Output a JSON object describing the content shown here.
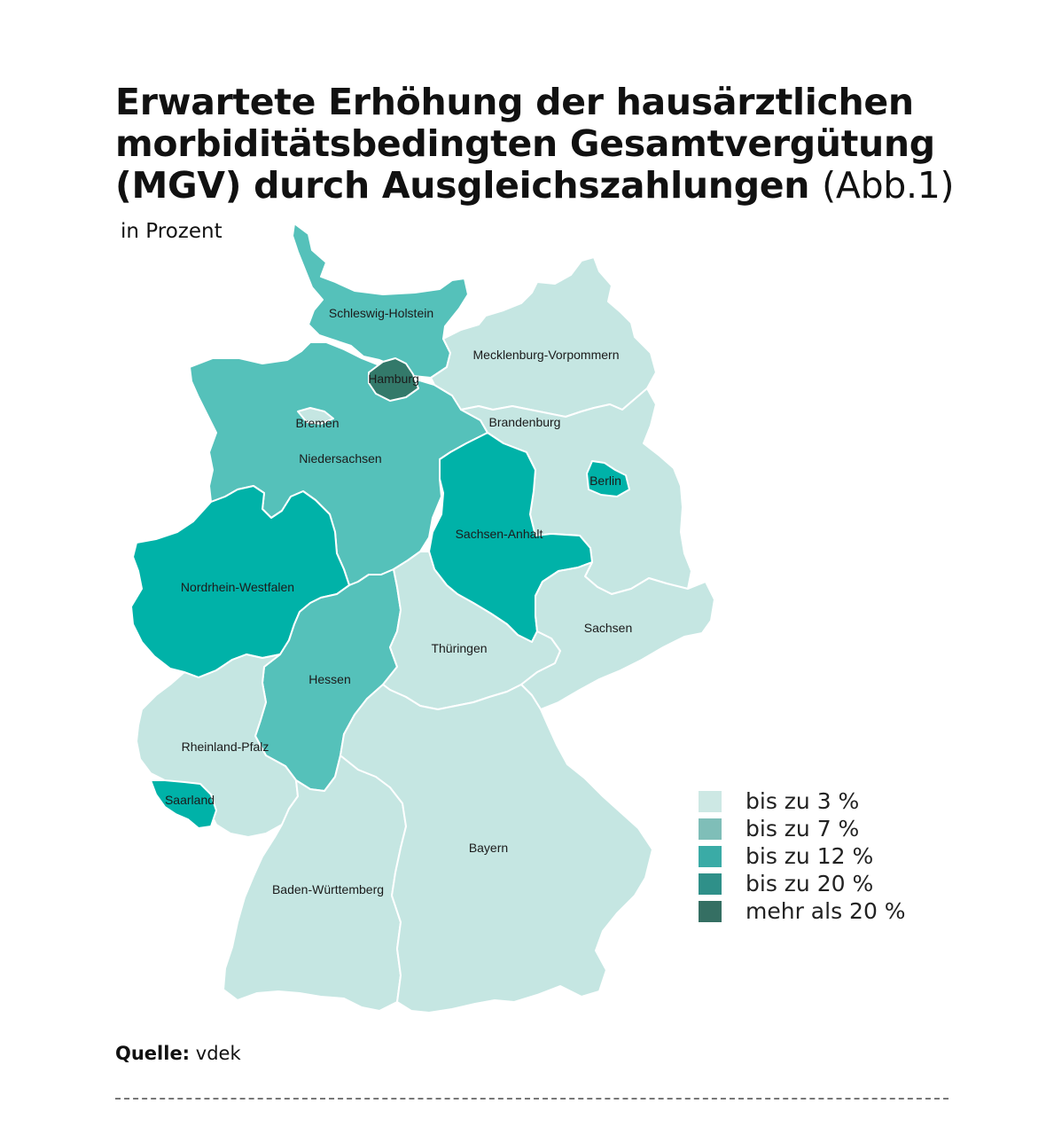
{
  "title": {
    "main": "Erwartete Erhöhung der hausärztlichen morbiditätsbedingten Gesamtvergütung (MGV) durch Ausgleichszahlungen",
    "suffix": "(Abb.1)"
  },
  "subtitle": "in Prozent",
  "colors": {
    "bis_3": "#c5e6e2",
    "bis_7": "#6cbdb6",
    "bis_12": "#55c1ba",
    "bis_20": "#00b2a8",
    "mehr_20": "#33796a"
  },
  "legend": [
    {
      "label": "bis zu 3 %",
      "color": "#cde8e4"
    },
    {
      "label": "bis zu 7 %",
      "color": "#7fbeb8"
    },
    {
      "label": "bis zu 12 %",
      "color": "#3aaba6"
    },
    {
      "label": "bis zu 20 %",
      "color": "#2f9089"
    },
    {
      "label": "mehr als 20 %",
      "color": "#356f63"
    }
  ],
  "states": {
    "schleswig_holstein": {
      "label": "Schleswig-Holstein",
      "category": "bis zu 12 %"
    },
    "hamburg": {
      "label": "Hamburg",
      "category": "mehr als 20 %"
    },
    "mecklenburg_vorpommern": {
      "label": "Mecklenburg-Vorpommern",
      "category": "bis zu 3 %"
    },
    "bremen": {
      "label": "Bremen",
      "category": "bis zu 3 %"
    },
    "brandenburg": {
      "label": "Brandenburg",
      "category": "bis zu 3 %"
    },
    "niedersachsen": {
      "label": "Niedersachsen",
      "category": "bis zu 12 %"
    },
    "berlin": {
      "label": "Berlin",
      "category": "bis zu 20 %"
    },
    "sachsen_anhalt": {
      "label": "Sachsen-Anhalt",
      "category": "bis zu 20 %"
    },
    "nordrhein_westfalen": {
      "label": "Nordrhein-Westfalen",
      "category": "bis zu 20 %"
    },
    "sachsen": {
      "label": "Sachsen",
      "category": "bis zu 3 %"
    },
    "thueringen": {
      "label": "Thüringen",
      "category": "bis zu 3 %"
    },
    "hessen": {
      "label": "Hessen",
      "category": "bis zu 12 %"
    },
    "rheinland_pfalz": {
      "label": "Rheinland-Pfalz",
      "category": "bis zu 3 %"
    },
    "saarland": {
      "label": "Saarland",
      "category": "bis zu 20 %"
    },
    "bayern": {
      "label": "Bayern",
      "category": "bis zu 3 %"
    },
    "baden_wuerttemberg": {
      "label": "Baden-Württemberg",
      "category": "bis zu 3 %"
    }
  },
  "source": {
    "label": "Quelle:",
    "value": "vdek"
  }
}
